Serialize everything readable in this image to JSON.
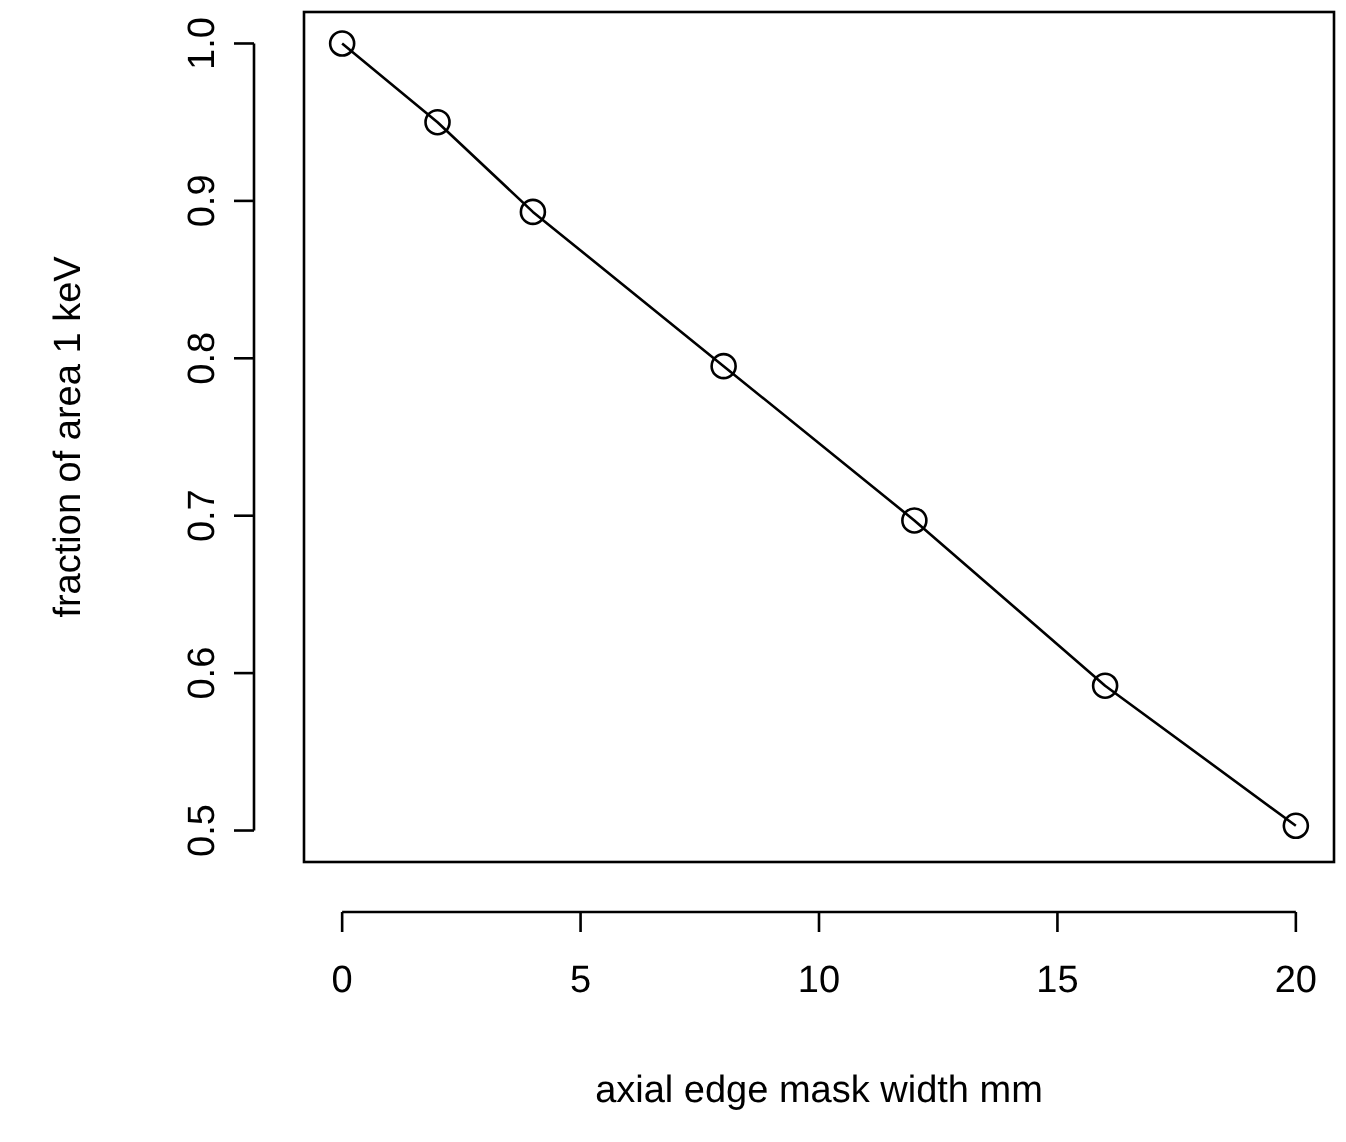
{
  "chart_data": {
    "type": "line",
    "xlabel": "axial edge mask width mm",
    "ylabel": "fraction of area 1 keV",
    "x": [
      0,
      2,
      4,
      8,
      12,
      16,
      20
    ],
    "series": [
      {
        "color": "#000000",
        "values": [
          1.0,
          0.95,
          0.893,
          0.795,
          0.697,
          0.592,
          0.503
        ]
      }
    ],
    "xlim": [
      -0.8,
      20.8
    ],
    "ylim": [
      0.48,
      1.02
    ],
    "xticks": [
      0,
      5,
      10,
      15,
      20
    ],
    "yticks": [
      0.5,
      0.6,
      0.7,
      0.8,
      0.9,
      {
        "value": 1,
        "label": "1.0"
      }
    ],
    "marker": "circle",
    "line_style": "solid",
    "grid": false
  }
}
